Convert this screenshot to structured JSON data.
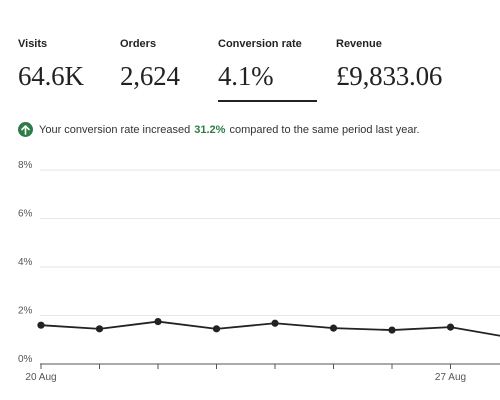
{
  "metrics": [
    {
      "label": "Visits",
      "value": "64.6K"
    },
    {
      "label": "Orders",
      "value": "2,624"
    },
    {
      "label": "Conversion rate",
      "value": "4.1%"
    },
    {
      "label": "Revenue",
      "value": "£9,833.06"
    }
  ],
  "notice": {
    "prefix": "Your conversion rate increased",
    "percent": "31.2%",
    "suffix": "compared to the same period last year.",
    "icon": "arrow-up-icon",
    "color": "#2e7d46"
  },
  "chart_data": {
    "type": "line",
    "y_ticks": [
      "8%",
      "6%",
      "4%",
      "2%",
      "0%"
    ],
    "x_labels": [
      {
        "index": 0,
        "label": "20 Aug"
      },
      {
        "index": 7,
        "label": "27 Aug"
      }
    ],
    "ylim": [
      0,
      8
    ],
    "series": [
      {
        "values": [
          1.6,
          1.45,
          1.75,
          1.45,
          1.68,
          1.48,
          1.4,
          1.52,
          1.1
        ]
      }
    ],
    "grid": true
  }
}
